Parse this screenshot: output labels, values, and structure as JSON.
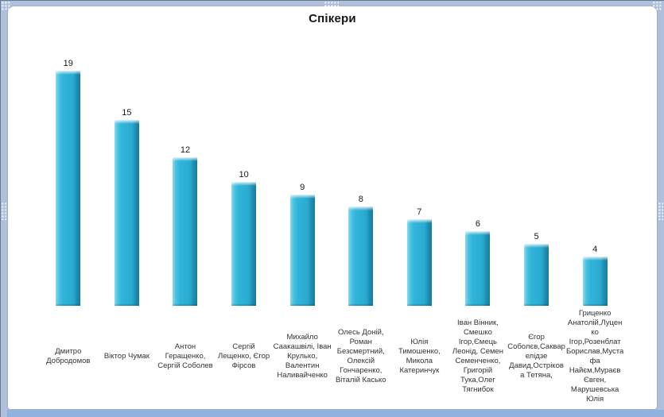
{
  "chart_data": {
    "type": "bar",
    "title": "Спікери",
    "categories": [
      "Дмитро Добродомов",
      "Віктор Чумак",
      "Антон Геращенко, Сергій Соболев",
      "Сергій Лещенко, Єгор Фірсов",
      "Михайло Саакашвілі, Іван Крулько, Валентин Наливайченко",
      "Олесь Доній, Роман Безсмертний, Олексій Гончаренко, Віталій Касько",
      "Юлія Тимошенко, Микола Катеринчук",
      "Іван Вінник, Смешко Ігор,Ємець Леонід, Семен Семенченко, Григорій Тука,Олег Тягнибок",
      "Єгор Соболєв,Сакварелідзе Давид,Острікова Тетяна,",
      "Гриценко Анатолій,Луценко Ігор,Розенблат Борислав,Мустафа Найєм,Мураєв Євген, Марушевська Юлія"
    ],
    "category_display": [
      "Дмитро\nДобродомов",
      "Віктор Чумак",
      "Антон\nГеращенко,\nСергій Соболев",
      "Сергій\nЛещенко, Єгор\nФірсов",
      "Михайло\nСаакашвілі, Іван\nКрулько,\nВалентин\nНаливайченко",
      "Олесь Доній,\nРоман\nБезсмертний,\nОлексій\nГончаренко,\nВіталій Касько",
      "Юлія\nТимошенко,\nМикола\nКатеринчук",
      "Іван Вінник,\nСмешко\nІгор,Ємець\nЛеонід, Семен\nСеменченко,\nГригорій\nТука,Олег\nТягнибок",
      "Єгор\nСоболєв,Саквар\nелідзе\nДавид,Остріков\nа Тетяна,",
      "Гриценко\nАнатолій,Луцен\nко\nІгор,Розенблат\nБорислав,Муста\nфа\nНайєм,Мураєв\nЄвген,\nМарушевська\nЮлія"
    ],
    "values": [
      19,
      15,
      12,
      10,
      9,
      8,
      7,
      6,
      5,
      4
    ],
    "data_labels": true,
    "xlabel": "",
    "ylabel": "",
    "ylim": [
      0,
      20
    ],
    "grid": false,
    "legend": "none",
    "bar_color": "#2db0d6",
    "bar_highlight_color": "#8adcee",
    "bar_shadow_color": "#177c9e"
  },
  "frame": {
    "band_color": "#aec0dc",
    "bottom_band_color": "#8fb2df",
    "panel_border_color": "#a5adba",
    "selection_handles": [
      "top-left",
      "top-center",
      "top-right",
      "left-middle",
      "right-middle"
    ]
  }
}
